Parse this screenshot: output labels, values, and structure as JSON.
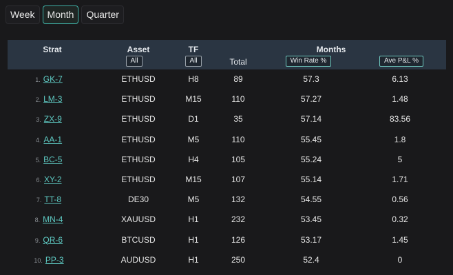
{
  "tabs": [
    {
      "label": "Week",
      "active": false
    },
    {
      "label": "Month",
      "active": true
    },
    {
      "label": "Quarter",
      "active": false
    }
  ],
  "header": {
    "strat": "Strat",
    "asset": "Asset",
    "tf": "TF",
    "total": "Total",
    "months": "Months",
    "asset_filter": "All",
    "tf_filter": "All",
    "win_rate": "Win Rate %",
    "ave_pl": "Ave P&L %"
  },
  "rows": [
    {
      "idx": "1.",
      "strat": "GK-7",
      "asset": "ETHUSD",
      "tf": "H8",
      "total": "89",
      "win_rate": "57.3",
      "ave_pl": "6.13"
    },
    {
      "idx": "2.",
      "strat": "LM-3",
      "asset": "ETHUSD",
      "tf": "M15",
      "total": "110",
      "win_rate": "57.27",
      "ave_pl": "1.48"
    },
    {
      "idx": "3.",
      "strat": "ZX-9",
      "asset": "ETHUSD",
      "tf": "D1",
      "total": "35",
      "win_rate": "57.14",
      "ave_pl": "83.56"
    },
    {
      "idx": "4.",
      "strat": "AA-1",
      "asset": "ETHUSD",
      "tf": "M5",
      "total": "110",
      "win_rate": "55.45",
      "ave_pl": "1.8"
    },
    {
      "idx": "5.",
      "strat": "BC-5",
      "asset": "ETHUSD",
      "tf": "H4",
      "total": "105",
      "win_rate": "55.24",
      "ave_pl": "5"
    },
    {
      "idx": "6.",
      "strat": "XY-2",
      "asset": "ETHUSD",
      "tf": "M15",
      "total": "107",
      "win_rate": "55.14",
      "ave_pl": "1.71"
    },
    {
      "idx": "7.",
      "strat": "TT-8",
      "asset": "DE30",
      "tf": "M5",
      "total": "132",
      "win_rate": "54.55",
      "ave_pl": "0.56"
    },
    {
      "idx": "8.",
      "strat": "MN-4",
      "asset": "XAUUSD",
      "tf": "H1",
      "total": "232",
      "win_rate": "53.45",
      "ave_pl": "0.32"
    },
    {
      "idx": "9.",
      "strat": "QR-6",
      "asset": "BTCUSD",
      "tf": "H1",
      "total": "126",
      "win_rate": "53.17",
      "ave_pl": "1.45"
    },
    {
      "idx": "10.",
      "strat": "PP-3",
      "asset": "AUDUSD",
      "tf": "H1",
      "total": "250",
      "win_rate": "52.4",
      "ave_pl": "0"
    }
  ]
}
